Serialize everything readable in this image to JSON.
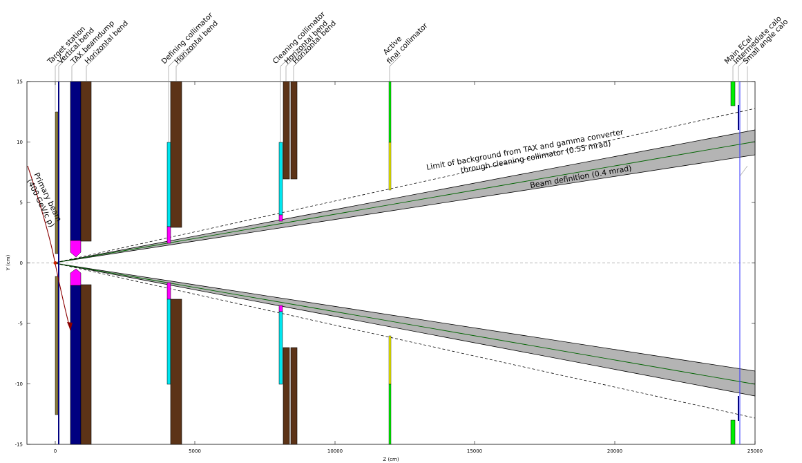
{
  "chart_data": {
    "type": "diagram",
    "xlabel": "Z (cm)",
    "ylabel": "Y (cm)",
    "xlim": [
      -1000,
      25000
    ],
    "ylim": [
      -15,
      15
    ],
    "xticks": [
      0,
      5000,
      10000,
      15000,
      20000,
      25000
    ],
    "yticks": [
      -15,
      -10,
      -5,
      0,
      5,
      10,
      15
    ],
    "components": [
      {
        "name": "target-station",
        "label": "Target station"
      },
      {
        "name": "vertical-bend",
        "label": "Vertical bend"
      },
      {
        "name": "tax-beamdump",
        "label": "TAX beamdump"
      },
      {
        "name": "horizontal-bend-1",
        "label": "Horizontal bend"
      },
      {
        "name": "defining-collimator",
        "label": "Defining collimator"
      },
      {
        "name": "horizontal-bend-2",
        "label": "Horizontal bend"
      },
      {
        "name": "cleaning-collimator",
        "label": "Cleaning collimator"
      },
      {
        "name": "horizontal-bend-3",
        "label": "Horizontal bend"
      },
      {
        "name": "horizontal-bend-4",
        "label": "Horizontal bend"
      },
      {
        "name": "active-final-collimator",
        "label": "Active\nfinal collimator"
      },
      {
        "name": "main-ecal",
        "label": "Main ECal"
      },
      {
        "name": "intermediate-calo",
        "label": "Intermediate calo"
      },
      {
        "name": "small-angle-calo",
        "label": "Small angle calo"
      }
    ],
    "annotations": {
      "primary_beam": "Primary beam\n(400 GeV/c p)",
      "limit": "Limit of background from TAX and gamma converter\nthrough cleaning collimator (0.55 mrad)",
      "beam_definition": "Beam definition (0.4 mrad)"
    },
    "colors": {
      "target": "#8b7d3a",
      "tax_blue": "#000080",
      "magenta": "#ff00ff",
      "cyan": "#00e5ee",
      "brown": "#5c3317",
      "green": "#00ee00",
      "yellow": "#eeee00",
      "beam_band": "#b4b4b4",
      "beam_center": "#006400",
      "primary_beam": "#8b0000",
      "small_angle_line": "#3030ff"
    }
  }
}
